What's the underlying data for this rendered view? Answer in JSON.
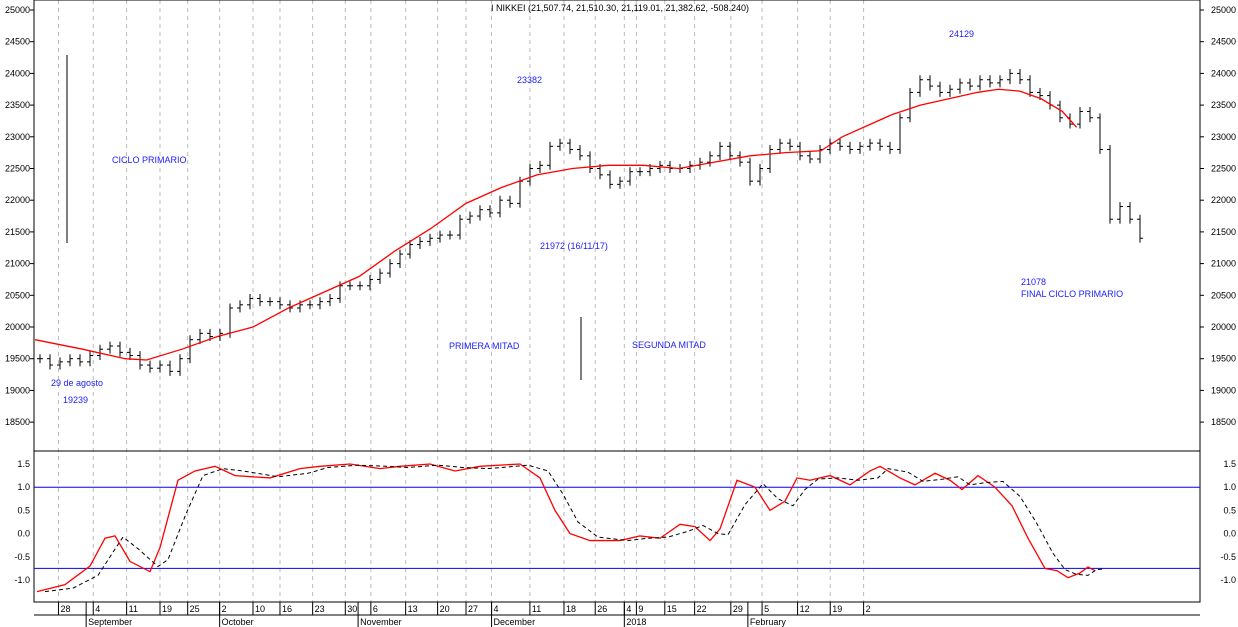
{
  "chart_data": {
    "type": "ohlc",
    "title": "I NIKKEI (21,507.74, 21,510.30, 21,119.01, 21,382.62, -508.240)",
    "price_axis": {
      "min": 18000,
      "max": 25000,
      "ticks": [
        18500,
        19000,
        19500,
        20000,
        20500,
        21000,
        21500,
        22000,
        22500,
        23000,
        23500,
        24000,
        24500,
        25000
      ]
    },
    "osc_axis": {
      "min": -1.25,
      "max": 1.85,
      "ticks": [
        "-1.0",
        "-0.5",
        "0.0",
        "0.5",
        "1.0",
        "1.5"
      ],
      "hlines": [
        1.0,
        -0.75
      ]
    },
    "x_ticks": [
      {
        "label": "28",
        "i": 2.6
      },
      {
        "label": "4",
        "i": 7.5
      },
      {
        "label": "11",
        "i": 12.2
      },
      {
        "label": "19",
        "i": 16.9
      },
      {
        "label": "25",
        "i": 20.8
      },
      {
        "label": "2",
        "i": 25.3
      },
      {
        "label": "10",
        "i": 30
      },
      {
        "label": "16",
        "i": 33.8
      },
      {
        "label": "23",
        "i": 38.4
      },
      {
        "label": "30",
        "i": 43
      },
      {
        "label": "6",
        "i": 46.6
      },
      {
        "label": "13",
        "i": 51.5
      },
      {
        "label": "20",
        "i": 56
      },
      {
        "label": "27",
        "i": 60
      },
      {
        "label": "4",
        "i": 63.6
      },
      {
        "label": "11",
        "i": 69
      },
      {
        "label": "18",
        "i": 73.8
      },
      {
        "label": "26",
        "i": 78.2
      },
      {
        "label": "4",
        "i": 82.3
      },
      {
        "label": "9",
        "i": 84
      },
      {
        "label": "15",
        "i": 88
      },
      {
        "label": "22",
        "i": 92.2
      },
      {
        "label": "29",
        "i": 97.3
      },
      {
        "label": "5",
        "i": 101.7
      },
      {
        "label": "12",
        "i": 106.7
      },
      {
        "label": "19",
        "i": 111.3
      },
      {
        "label": "2",
        "i": 116
      }
    ],
    "months": [
      {
        "label": "September",
        "i": 6.5
      },
      {
        "label": "October",
        "i": 25.3
      },
      {
        "label": "November",
        "i": 44.8
      },
      {
        "label": "December",
        "i": 63.6
      },
      {
        "label": "2018",
        "i": 82.3
      },
      {
        "label": "February",
        "i": 99.7
      }
    ],
    "closes": [
      19500,
      19400,
      19450,
      19500,
      19450,
      19550,
      19650,
      19700,
      19600,
      19550,
      19400,
      19350,
      19400,
      19300,
      19500,
      19800,
      19900,
      19850,
      19900,
      20300,
      20350,
      20450,
      20400,
      20400,
      20350,
      20300,
      20350,
      20350,
      20400,
      20450,
      20650,
      20650,
      20650,
      20750,
      20850,
      21000,
      21150,
      21300,
      21350,
      21400,
      21450,
      21450,
      21700,
      21750,
      21850,
      21800,
      22000,
      21950,
      22300,
      22500,
      22550,
      22850,
      22900,
      22800,
      22700,
      22500,
      22400,
      22250,
      22300,
      22450,
      22450,
      22500,
      22550,
      22500,
      22500,
      22550,
      22600,
      22700,
      22850,
      22700,
      22600,
      22300,
      22500,
      22800,
      22900,
      22850,
      22700,
      22650,
      22800,
      22900,
      22850,
      22800,
      22850,
      22900,
      22850,
      22800,
      23300,
      23700,
      23900,
      23800,
      23700,
      23750,
      23850,
      23800,
      23900,
      23850,
      23900,
      24000,
      23900,
      23700,
      23650,
      23500,
      23300,
      23200,
      23400,
      23300,
      22800,
      21700,
      21900,
      21700,
      21400
    ],
    "moving_average": [
      [
        -0.7,
        19800
      ],
      [
        6,
        19650
      ],
      [
        12,
        19500
      ],
      [
        15,
        19480
      ],
      [
        20,
        19650
      ],
      [
        25,
        19850
      ],
      [
        30,
        20000
      ],
      [
        35,
        20300
      ],
      [
        40,
        20550
      ],
      [
        45,
        20800
      ],
      [
        50,
        21200
      ],
      [
        55,
        21550
      ],
      [
        60,
        21950
      ],
      [
        65,
        22200
      ],
      [
        70,
        22400
      ],
      [
        75,
        22500
      ],
      [
        80,
        22550
      ],
      [
        85,
        22550
      ],
      [
        90,
        22500
      ],
      [
        95,
        22600
      ],
      [
        100,
        22700
      ],
      [
        105,
        22750
      ],
      [
        110,
        22780
      ],
      [
        113,
        23000
      ],
      [
        117,
        23200
      ],
      [
        120,
        23350
      ],
      [
        124,
        23500
      ],
      [
        128,
        23600
      ],
      [
        132,
        23700
      ],
      [
        135,
        23750
      ],
      [
        138,
        23720
      ],
      [
        141,
        23600
      ],
      [
        144,
        23400
      ],
      [
        146,
        23150
      ]
    ],
    "oscillator": [
      [
        -0.3,
        -1.25
      ],
      [
        2.5,
        -1.1
      ],
      [
        5,
        -0.7
      ],
      [
        6.5,
        -0.1
      ],
      [
        7.5,
        -0.05
      ],
      [
        9,
        -0.6
      ],
      [
        11,
        -0.82
      ],
      [
        12,
        -0.3
      ],
      [
        13.8,
        1.15
      ],
      [
        15.5,
        1.35
      ],
      [
        17.5,
        1.45
      ],
      [
        19.5,
        1.25
      ],
      [
        23,
        1.2
      ],
      [
        26,
        1.4
      ],
      [
        28,
        1.45
      ],
      [
        31,
        1.5
      ],
      [
        34,
        1.4
      ],
      [
        36,
        1.45
      ],
      [
        39,
        1.5
      ],
      [
        41.5,
        1.35
      ],
      [
        44,
        1.45
      ],
      [
        48,
        1.5
      ],
      [
        50,
        1.2
      ],
      [
        51.5,
        0.5
      ],
      [
        53,
        0
      ],
      [
        55,
        -0.15
      ],
      [
        58,
        -0.15
      ],
      [
        60,
        -0.05
      ],
      [
        62,
        -0.1
      ],
      [
        64,
        0.2
      ],
      [
        65.5,
        0.15
      ],
      [
        67,
        -0.15
      ],
      [
        68,
        0.1
      ],
      [
        69.7,
        1.15
      ],
      [
        71.5,
        1.0
      ],
      [
        73,
        0.5
      ],
      [
        74.5,
        0.7
      ],
      [
        75.7,
        1.2
      ],
      [
        77,
        1.15
      ],
      [
        79,
        1.25
      ],
      [
        81,
        1.05
      ],
      [
        83,
        1.35
      ],
      [
        84,
        1.45
      ],
      [
        86,
        1.2
      ],
      [
        87.5,
        1.05
      ],
      [
        89.5,
        1.3
      ],
      [
        91,
        1.15
      ],
      [
        92.2,
        0.95
      ],
      [
        93.8,
        1.25
      ],
      [
        95.5,
        1.0
      ],
      [
        97.2,
        0.6
      ],
      [
        98.8,
        -0.1
      ],
      [
        100.5,
        -0.75
      ],
      [
        101.7,
        -0.8
      ],
      [
        102.8,
        -0.95
      ],
      [
        104,
        -0.85
      ],
      [
        104.8,
        -0.72
      ],
      [
        105.5,
        -0.8
      ]
    ],
    "annotations": {
      "ciclo": "CICLO PRIMARIO",
      "high1": "23382",
      "high2": "24129",
      "low_mid": "21972 (16/11/17)",
      "low_end": "21078",
      "final": "FINAL CICLO PRIMARIO",
      "primera": "PRIMERA MITAD",
      "segunda": "SEGUNDA MITAD",
      "start_date": "29 de agosto",
      "start_low": "19239"
    },
    "colors": {
      "bars": "#000000",
      "ma": "#ff0000",
      "osc": "#ff0000",
      "signal": "#000000",
      "hline": "#0000ff",
      "annotation": "#2020ff"
    }
  }
}
